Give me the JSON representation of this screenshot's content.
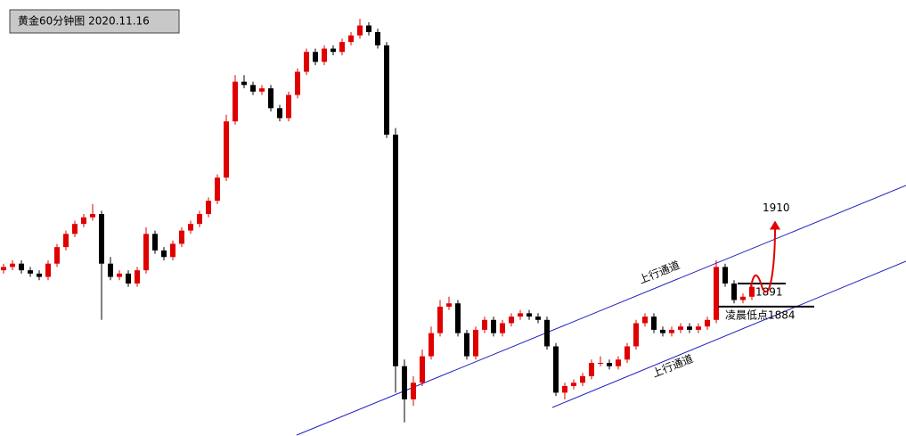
{
  "chart_data": {
    "type": "candlestick",
    "title": "黄金60分钟图 2020.11.16",
    "ylim": [
      1844.9,
      1976.7
    ],
    "up_color": "#e00000",
    "down_color": "#000000",
    "open": [
      1895,
      1896,
      1897,
      1895,
      1894,
      1893,
      1897,
      1902,
      1906,
      1909,
      1911,
      1912,
      1897,
      1893,
      1894,
      1891,
      1895,
      1906,
      1901,
      1899,
      1903,
      1907,
      1909,
      1912,
      1916,
      1923,
      1940,
      1952,
      1951,
      1949,
      1950,
      1944,
      1941,
      1948,
      1955,
      1961,
      1958,
      1962,
      1961,
      1964,
      1966,
      1969,
      1967,
      1963,
      1936,
      1866,
      1856,
      1861,
      1869,
      1876,
      1884,
      1885,
      1876,
      1869,
      1877,
      1880,
      1876,
      1879,
      1881,
      1882,
      1881,
      1880,
      1872,
      1858,
      1860,
      1861,
      1863,
      1867,
      1867,
      1866,
      1868,
      1872,
      1879,
      1881,
      1877,
      1876,
      1877,
      1878,
      1877,
      1878,
      1880,
      1896,
      1891,
      1886,
      1887
    ],
    "high": [
      1897,
      1898,
      1898,
      1896,
      1895,
      1898,
      1903,
      1907,
      1910,
      1912,
      1915,
      1913,
      1899,
      1895,
      1895,
      1896,
      1908,
      1907,
      1902,
      1904,
      1908,
      1910,
      1913,
      1917,
      1924,
      1942,
      1954,
      1954,
      1952,
      1951,
      1951,
      1945,
      1949,
      1956,
      1962,
      1962,
      1963,
      1963,
      1965,
      1967,
      1971,
      1970,
      1968,
      1964,
      1938,
      1868,
      1863,
      1871,
      1878,
      1886,
      1887,
      1886,
      1877,
      1878,
      1881,
      1881,
      1880,
      1882,
      1883,
      1883,
      1882,
      1881,
      1873,
      1861,
      1862,
      1864,
      1868,
      1869,
      1868,
      1869,
      1873,
      1880,
      1882,
      1882,
      1878,
      1878,
      1879,
      1879,
      1879,
      1881,
      1898,
      1897,
      1892,
      1888,
      1891
    ],
    "low": [
      1894,
      1895,
      1894,
      1893,
      1892,
      1892,
      1896,
      1901,
      1905,
      1908,
      1910,
      1880,
      1892,
      1892,
      1890,
      1890,
      1894,
      1900,
      1898,
      1898,
      1902,
      1906,
      1908,
      1911,
      1915,
      1922,
      1939,
      1950,
      1948,
      1948,
      1943,
      1940,
      1940,
      1947,
      1954,
      1957,
      1957,
      1960,
      1960,
      1963,
      1965,
      1966,
      1962,
      1935,
      1858,
      1849,
      1854,
      1860,
      1868,
      1875,
      1883,
      1875,
      1868,
      1868,
      1876,
      1875,
      1875,
      1878,
      1880,
      1880,
      1879,
      1871,
      1857,
      1856,
      1859,
      1860,
      1862,
      1866,
      1865,
      1865,
      1867,
      1871,
      1878,
      1876,
      1875,
      1875,
      1876,
      1876,
      1876,
      1877,
      1879,
      1890,
      1885,
      1885,
      1886
    ],
    "close": [
      1896,
      1897,
      1895,
      1894,
      1893,
      1897,
      1902,
      1906,
      1909,
      1911,
      1912,
      1897,
      1893,
      1894,
      1891,
      1895,
      1906,
      1901,
      1899,
      1903,
      1907,
      1909,
      1912,
      1916,
      1923,
      1940,
      1952,
      1951,
      1949,
      1950,
      1944,
      1941,
      1948,
      1955,
      1961,
      1958,
      1962,
      1961,
      1964,
      1966,
      1969,
      1967,
      1963,
      1936,
      1866,
      1856,
      1861,
      1869,
      1876,
      1884,
      1885,
      1876,
      1869,
      1877,
      1880,
      1876,
      1879,
      1881,
      1882,
      1881,
      1880,
      1872,
      1858,
      1860,
      1861,
      1863,
      1867,
      1867,
      1866,
      1868,
      1872,
      1879,
      1881,
      1877,
      1876,
      1877,
      1878,
      1877,
      1878,
      1880,
      1896,
      1891,
      1886,
      1887,
      1890
    ],
    "annotations": [
      "上行通道",
      "上行通道"
    ],
    "levels": [
      {
        "value": 1891,
        "label": "1891"
      },
      {
        "value": 1884,
        "label": "凌晨低点1884"
      }
    ],
    "target": {
      "value": 1910,
      "label": "1910"
    }
  }
}
